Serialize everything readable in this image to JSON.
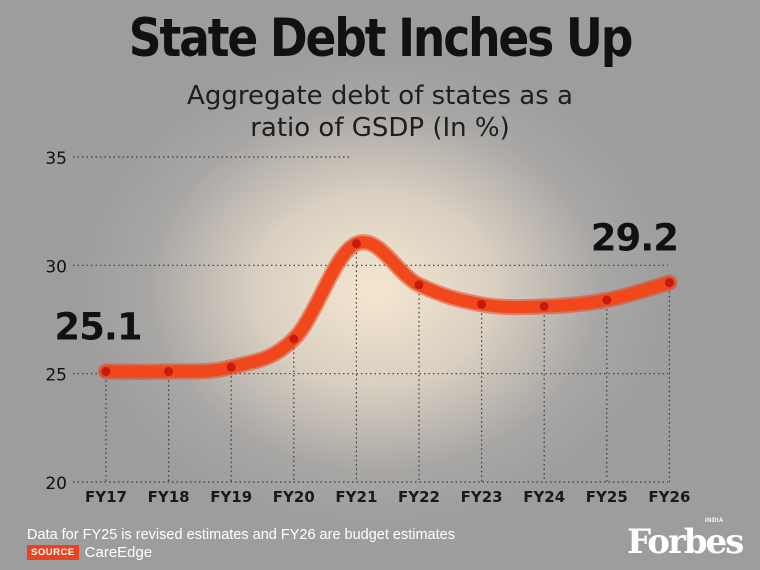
{
  "header": {
    "title": "State Debt Inches Up",
    "subtitle": "Aggregate debt  of states as a\nratio of GSDP (In %)"
  },
  "chart_data": {
    "type": "line",
    "categories": [
      "FY17",
      "FY18",
      "FY19",
      "FY20",
      "FY21",
      "FY22",
      "FY23",
      "FY24",
      "FY25",
      "FY26"
    ],
    "series": [
      {
        "values": [
          25.1,
          25.1,
          25.3,
          26.6,
          31.0,
          29.1,
          28.2,
          28.1,
          28.4,
          29.2
        ]
      }
    ],
    "ylim": [
      20,
      35
    ],
    "yticks": [
      20,
      25,
      30,
      35
    ],
    "annotations": [
      {
        "label": "25.1",
        "index": 0
      },
      {
        "label": "29.2",
        "index": 9
      }
    ],
    "grid": "dotted",
    "colors": {
      "line": "#f0471c",
      "marker": "#c41a10",
      "grid": "#3a3a3a"
    }
  },
  "footer": {
    "note": "Data for FY25 is revised estimates and FY26 are budget estimates",
    "source_badge": "SOURCE",
    "source_name": "CareEdge"
  },
  "brand": {
    "logo_text": "Forbes",
    "logo_tag": "INDIA"
  }
}
